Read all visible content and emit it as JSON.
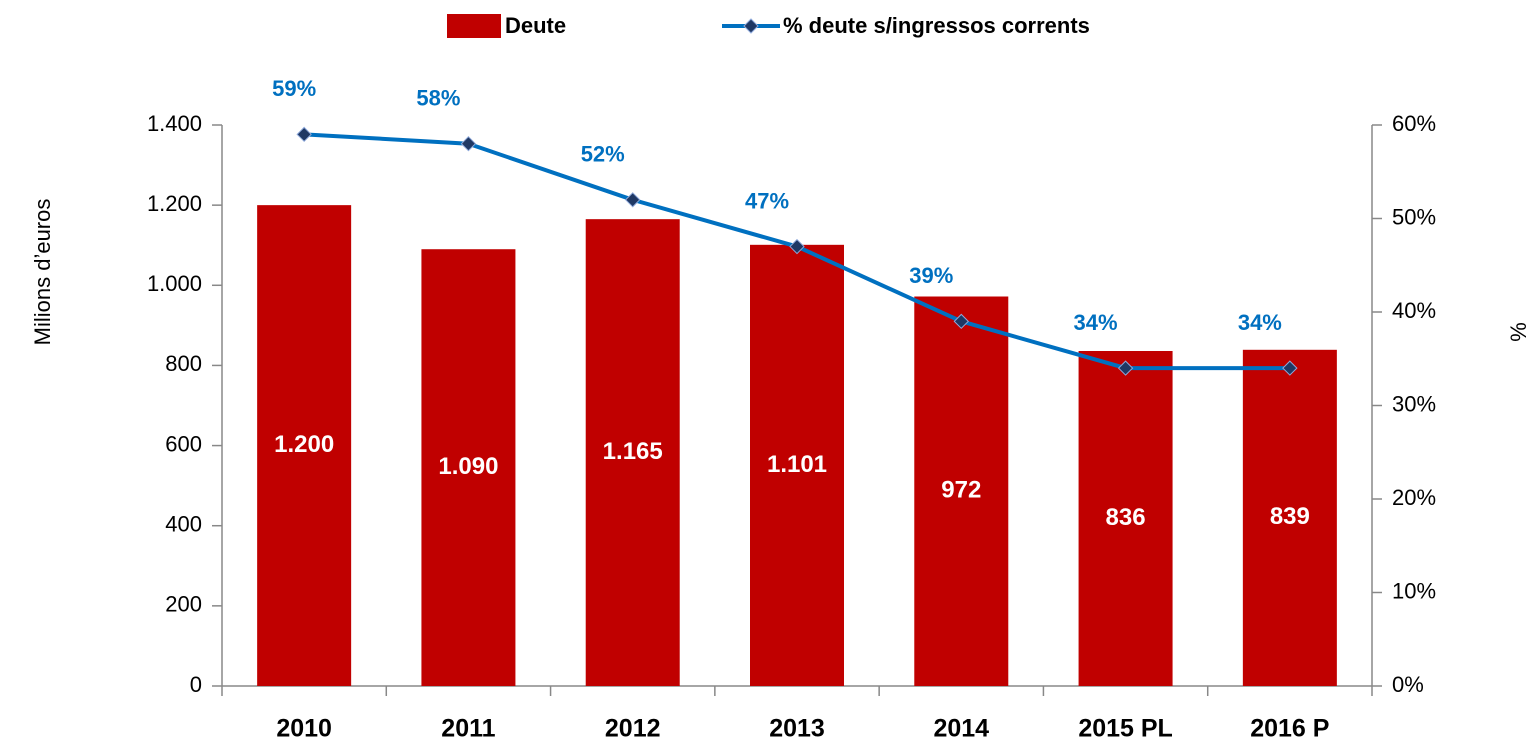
{
  "chart_data": {
    "type": "bar",
    "categories": [
      "2010",
      "2011",
      "2012",
      "2013",
      "2014",
      "2015 PL",
      "2016 P"
    ],
    "series": [
      {
        "name": "Deute",
        "color": "#c00000",
        "values": [
          1200,
          1090,
          1165,
          1101,
          972,
          836,
          839
        ],
        "value_labels": [
          "1.200",
          "1.090",
          "1.165",
          "1.101",
          "972",
          "836",
          "839"
        ]
      },
      {
        "name": "% deute s/ingressos corrents",
        "type": "line",
        "axis": "y2",
        "color": "#0070c0",
        "marker_color": "#1f3864",
        "values": [
          59,
          58,
          52,
          47,
          39,
          34,
          34
        ],
        "value_labels": [
          "59%",
          "58%",
          "52%",
          "47%",
          "39%",
          "34%",
          "34%"
        ]
      }
    ],
    "ylabel": "Milions d’euros",
    "y2label": "%",
    "ylim": [
      0,
      1400
    ],
    "yticks": [
      0,
      200,
      400,
      600,
      800,
      {
        "value": 1000,
        "label": "1.000"
      },
      {
        "value": 1200,
        "label": "1.200"
      },
      {
        "value": 1400,
        "label": "1.400"
      }
    ],
    "y2lim": [
      0,
      60
    ],
    "y2ticks": [
      {
        "value": 0,
        "label": "0%"
      },
      {
        "value": 10,
        "label": "10%"
      },
      {
        "value": 20,
        "label": "20%"
      },
      {
        "value": 30,
        "label": "30%"
      },
      {
        "value": 40,
        "label": "40%"
      },
      {
        "value": 50,
        "label": "50%"
      },
      {
        "value": 60,
        "label": "60%"
      }
    ],
    "grid": false,
    "legend": "top"
  }
}
